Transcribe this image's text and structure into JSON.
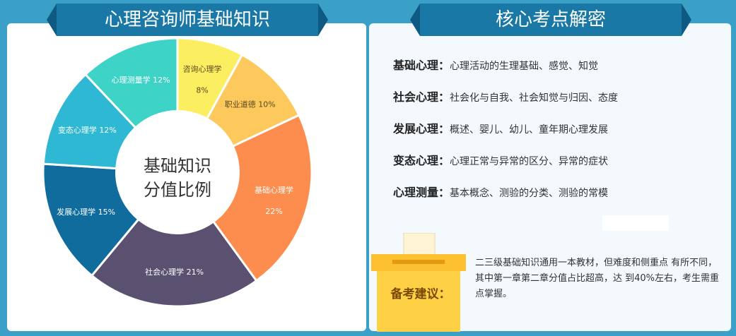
{
  "left_title": "心理咨询师基础知识",
  "right_title": "核心考点解密",
  "chart_data": {
    "type": "pie",
    "center_label": [
      "基础知识",
      "分值比例"
    ],
    "slices": [
      {
        "name": "咨询心理学",
        "value": 8,
        "pct": "8%",
        "color": "#fbee60"
      },
      {
        "name": "职业道德",
        "value": 10,
        "pct": "10%",
        "color": "#fdc85c"
      },
      {
        "name": "基础心理学",
        "value": 22,
        "pct": "22%",
        "color": "#fd8d4e"
      },
      {
        "name": "社会心理学",
        "value": 21,
        "pct": "21%",
        "color": "#5a5070"
      },
      {
        "name": "发展心理学",
        "value": 15,
        "pct": "15%",
        "color": "#0f6c9d"
      },
      {
        "name": "变态心理学",
        "value": 12,
        "pct": "12%",
        "color": "#2eb8d3"
      },
      {
        "name": "心理测量学",
        "value": 12,
        "pct": "12%",
        "color": "#3dd3c6"
      }
    ]
  },
  "key_points": [
    {
      "label": "基础心理",
      "colon": "：",
      "text": "心理活动的生理基础、感觉、知觉"
    },
    {
      "label": "社会心理",
      "colon": "：",
      "text": "社会化与自我、社会知觉与归因、态度"
    },
    {
      "label": "发展心理",
      "colon": "：",
      "text": "概述、婴儿、幼儿、童年期心理发展"
    },
    {
      "label": "变态心理",
      "colon": "：",
      "text": "心理正常与异常的区分、异常的症状"
    },
    {
      "label": "心理测量",
      "colon": "：",
      "text": "基本概念、测验的分类、测验的常模"
    }
  ],
  "tip": {
    "label": "备考建议：",
    "text": "二三级基础知识通用一本教材，但难度和侧重点 有所不同，其中第一章第二章分值占比超高，达 到40%左右，考生需重点掌握。"
  },
  "colors": {
    "background": "#3aa0c8",
    "ribbon": "#1a78a6",
    "ribbon_fold": "#0e5a82",
    "tip_box": "#fdd045"
  }
}
